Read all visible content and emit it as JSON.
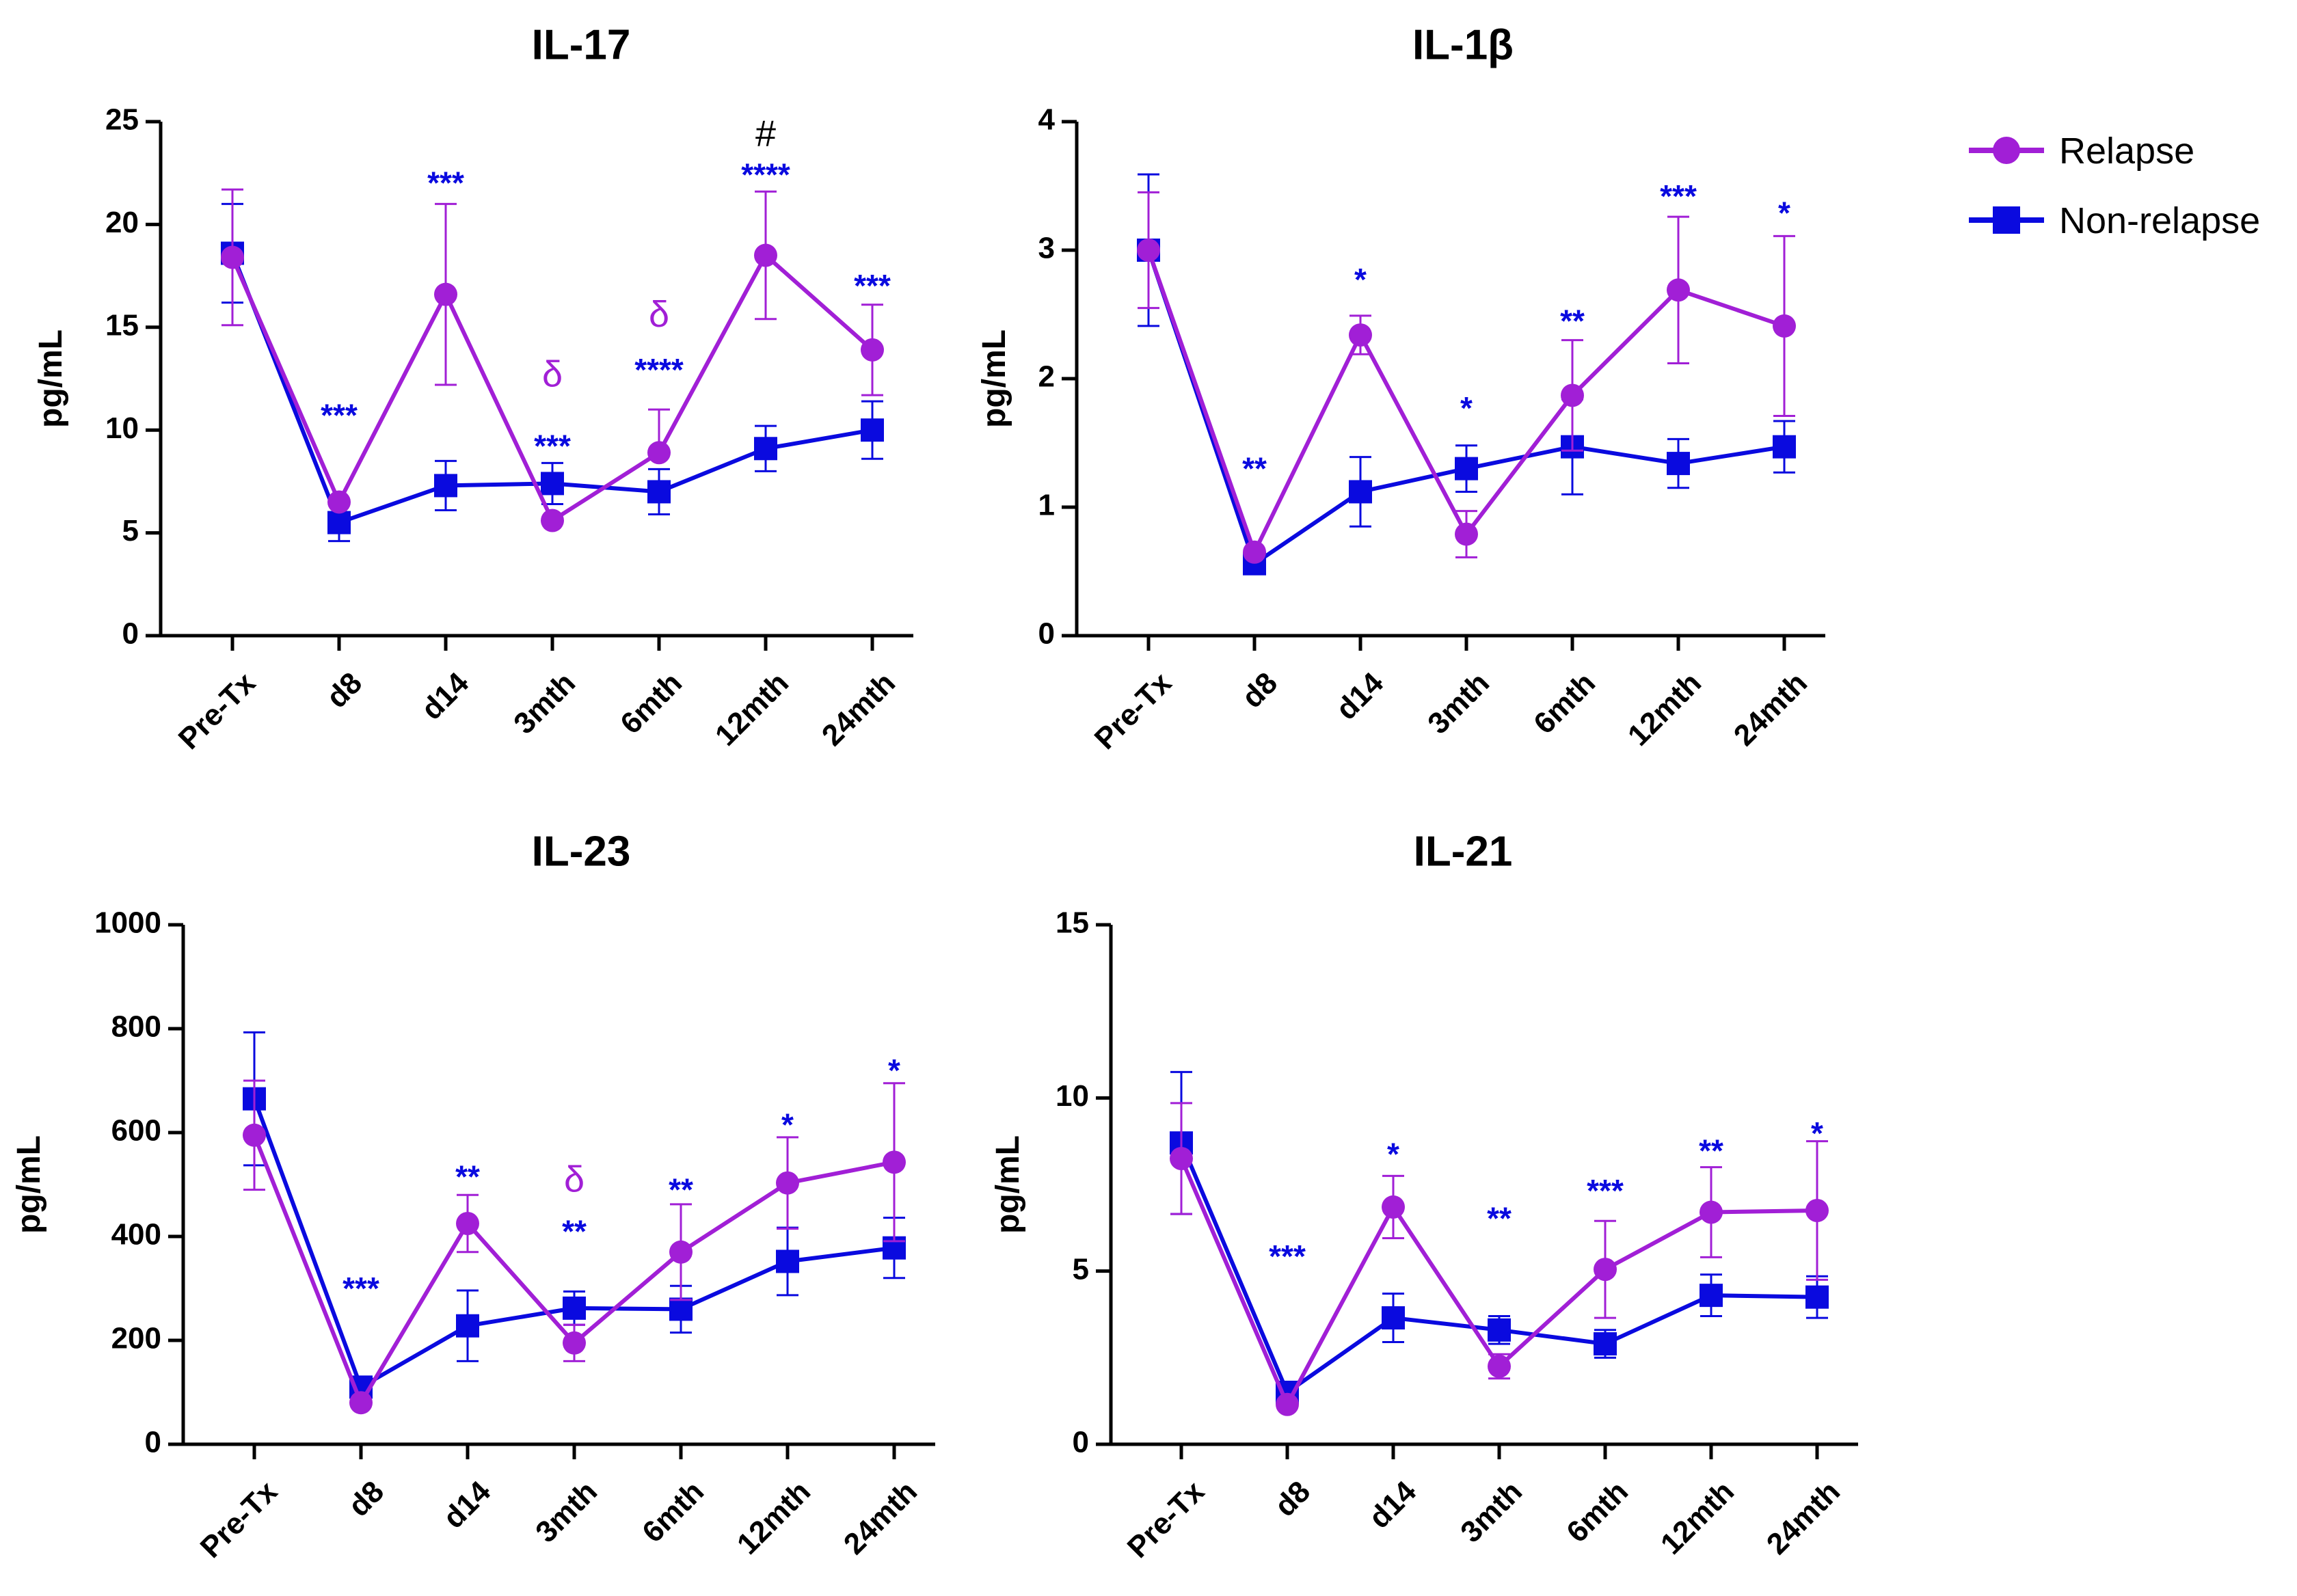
{
  "chart_data": [
    {
      "type": "line",
      "title": "IL-17",
      "ylabel": "pg/mL",
      "xlabel": "",
      "categories": [
        "Pre-Tx",
        "d8",
        "d14",
        "3mth",
        "6mth",
        "12mth",
        "24mth"
      ],
      "ylim": [
        0,
        25
      ],
      "yticks": [
        0,
        5,
        10,
        15,
        20,
        25
      ],
      "series": [
        {
          "name": "Relapse",
          "values": [
            18.4,
            6.5,
            16.6,
            5.6,
            8.9,
            18.5,
            13.9
          ],
          "err_up": [
            3.3,
            0,
            4.4,
            0,
            2.1,
            3.1,
            2.2
          ],
          "err_down": [
            3.3,
            0,
            4.4,
            0,
            0,
            3.1,
            2.2
          ]
        },
        {
          "name": "Non-relapse",
          "values": [
            18.6,
            5.5,
            7.3,
            7.4,
            7.0,
            9.1,
            10.0
          ],
          "err_up": [
            2.4,
            0,
            1.2,
            1.0,
            1.1,
            1.1,
            1.4
          ],
          "err_down": [
            2.4,
            0.9,
            1.2,
            1.0,
            1.1,
            1.1,
            1.4
          ]
        }
      ],
      "annotations": [
        {
          "x": "d8",
          "text": "***",
          "series": "Non-relapse",
          "y": 10.6
        },
        {
          "x": "d14",
          "text": "***",
          "series": "Non-relapse",
          "y": 21.9
        },
        {
          "x": "3mth",
          "text": "δ",
          "series": "Relapse",
          "y": 12.6
        },
        {
          "x": "3mth",
          "text": "***",
          "series": "Non-relapse",
          "y": 9.1
        },
        {
          "x": "6mth",
          "text": "δ",
          "series": "Relapse",
          "y": 15.5
        },
        {
          "x": "6mth",
          "text": "****",
          "series": "Non-relapse",
          "y": 12.8
        },
        {
          "x": "12mth",
          "text": "#",
          "series": "both",
          "y": 24.3
        },
        {
          "x": "12mth",
          "text": "****",
          "series": "Non-relapse",
          "y": 22.3
        },
        {
          "x": "24mth",
          "text": "***",
          "series": "Non-relapse",
          "y": 16.9
        }
      ]
    },
    {
      "type": "line",
      "title": "IL-1β",
      "ylabel": "pg/mL",
      "xlabel": "",
      "categories": [
        "Pre-Tx",
        "d8",
        "d14",
        "3mth",
        "6mth",
        "12mth",
        "24mth"
      ],
      "ylim": [
        0,
        4
      ],
      "yticks": [
        0,
        1,
        2,
        3,
        4
      ],
      "series": [
        {
          "name": "Relapse",
          "values": [
            3.0,
            0.65,
            2.34,
            0.79,
            1.87,
            2.69,
            2.41
          ],
          "err_up": [
            0.45,
            0,
            0.15,
            0.18,
            0.43,
            0.57,
            0.7
          ],
          "err_down": [
            0.45,
            0,
            0.15,
            0.18,
            0.43,
            0.57,
            0.7
          ]
        },
        {
          "name": "Non-relapse",
          "values": [
            3.0,
            0.56,
            1.12,
            1.3,
            1.47,
            1.34,
            1.47
          ],
          "err_up": [
            0.59,
            0,
            0.27,
            0.18,
            0.37,
            0.19,
            0.2
          ],
          "err_down": [
            0.59,
            0,
            0.27,
            0.18,
            0.37,
            0.19,
            0.2
          ]
        }
      ],
      "annotations": [
        {
          "x": "d8",
          "text": "**",
          "series": "Non-relapse",
          "y": 1.28
        },
        {
          "x": "d14",
          "text": "*",
          "series": "Non-relapse",
          "y": 2.75
        },
        {
          "x": "3mth",
          "text": "*",
          "series": "Non-relapse",
          "y": 1.75
        },
        {
          "x": "6mth",
          "text": "**",
          "series": "Non-relapse",
          "y": 2.43
        },
        {
          "x": "12mth",
          "text": "***",
          "series": "Non-relapse",
          "y": 3.4
        },
        {
          "x": "24mth",
          "text": "*",
          "series": "Non-relapse",
          "y": 3.27
        }
      ]
    },
    {
      "type": "line",
      "title": "IL-23",
      "ylabel": "pg/mL",
      "xlabel": "",
      "categories": [
        "Pre-Tx",
        "d8",
        "d14",
        "3mth",
        "6mth",
        "12mth",
        "24mth"
      ],
      "ylim": [
        0,
        1000
      ],
      "yticks": [
        0,
        200,
        400,
        600,
        800,
        1000
      ],
      "series": [
        {
          "name": "Relapse",
          "values": [
            595,
            80,
            425,
            195,
            370,
            503,
            543
          ],
          "err_up": [
            105,
            0,
            55,
            35,
            92,
            88,
            152
          ],
          "err_down": [
            105,
            0,
            55,
            35,
            92,
            88,
            152
          ]
        },
        {
          "name": "Non-relapse",
          "values": [
            665,
            110,
            228,
            262,
            260,
            352,
            378
          ],
          "err_up": [
            128,
            0,
            68,
            32,
            45,
            65,
            58
          ],
          "err_down": [
            128,
            0,
            68,
            32,
            45,
            65,
            58
          ]
        }
      ],
      "annotations": [
        {
          "x": "d8",
          "text": "***",
          "series": "Non-relapse",
          "y": 295
        },
        {
          "x": "d14",
          "text": "**",
          "series": "Non-relapse",
          "y": 510
        },
        {
          "x": "3mth",
          "text": "δ",
          "series": "Relapse",
          "y": 505
        },
        {
          "x": "3mth",
          "text": "**",
          "series": "Non-relapse",
          "y": 405
        },
        {
          "x": "6mth",
          "text": "**",
          "series": "Non-relapse",
          "y": 485
        },
        {
          "x": "12mth",
          "text": "*",
          "series": "Non-relapse",
          "y": 610
        },
        {
          "x": "24mth",
          "text": "*",
          "series": "Non-relapse",
          "y": 715
        }
      ]
    },
    {
      "type": "line",
      "title": "IL-21",
      "ylabel": "pg/mL",
      "xlabel": "",
      "categories": [
        "Pre-Tx",
        "d8",
        "d14",
        "3mth",
        "6mth",
        "12mth",
        "24mth"
      ],
      "ylim": [
        0,
        15
      ],
      "yticks": [
        0,
        5,
        10,
        15
      ],
      "series": [
        {
          "name": "Relapse",
          "values": [
            8.25,
            1.15,
            6.85,
            2.25,
            5.05,
            6.7,
            6.75
          ],
          "err_up": [
            1.6,
            0,
            0.9,
            0.35,
            1.4,
            1.3,
            2.0
          ],
          "err_down": [
            1.6,
            0,
            0.9,
            0.35,
            1.4,
            1.3,
            2.0
          ]
        },
        {
          "name": "Non-relapse",
          "values": [
            8.7,
            1.5,
            3.65,
            3.3,
            2.9,
            4.3,
            4.25
          ],
          "err_up": [
            2.05,
            0,
            0.7,
            0.4,
            0.4,
            0.6,
            0.6
          ],
          "err_down": [
            2.05,
            0,
            0.7,
            0.4,
            0.4,
            0.6,
            0.6
          ]
        }
      ],
      "annotations": [
        {
          "x": "d8",
          "text": "***",
          "series": "Non-relapse",
          "y": 5.35
        },
        {
          "x": "d14",
          "text": "*",
          "series": "Non-relapse",
          "y": 8.3
        },
        {
          "x": "3mth",
          "text": "**",
          "series": "Non-relapse",
          "y": 6.45
        },
        {
          "x": "6mth",
          "text": "***",
          "series": "Non-relapse",
          "y": 7.25
        },
        {
          "x": "12mth",
          "text": "**",
          "series": "Non-relapse",
          "y": 8.4
        },
        {
          "x": "24mth",
          "text": "*",
          "series": "Non-relapse",
          "y": 8.9
        }
      ]
    }
  ],
  "legend": {
    "position": "top-right",
    "items": [
      {
        "label": "Relapse",
        "color": "#a11fd6",
        "marker": "circle"
      },
      {
        "label": "Non-relapse",
        "color": "#0a0adf",
        "marker": "square"
      }
    ]
  },
  "colors": {
    "relapse": "#a11fd6",
    "nonrelapse": "#0a0adf",
    "relapse_annot": "#a11fd6",
    "nonrelapse_annot": "#0a0adf",
    "axis": "#000000"
  }
}
